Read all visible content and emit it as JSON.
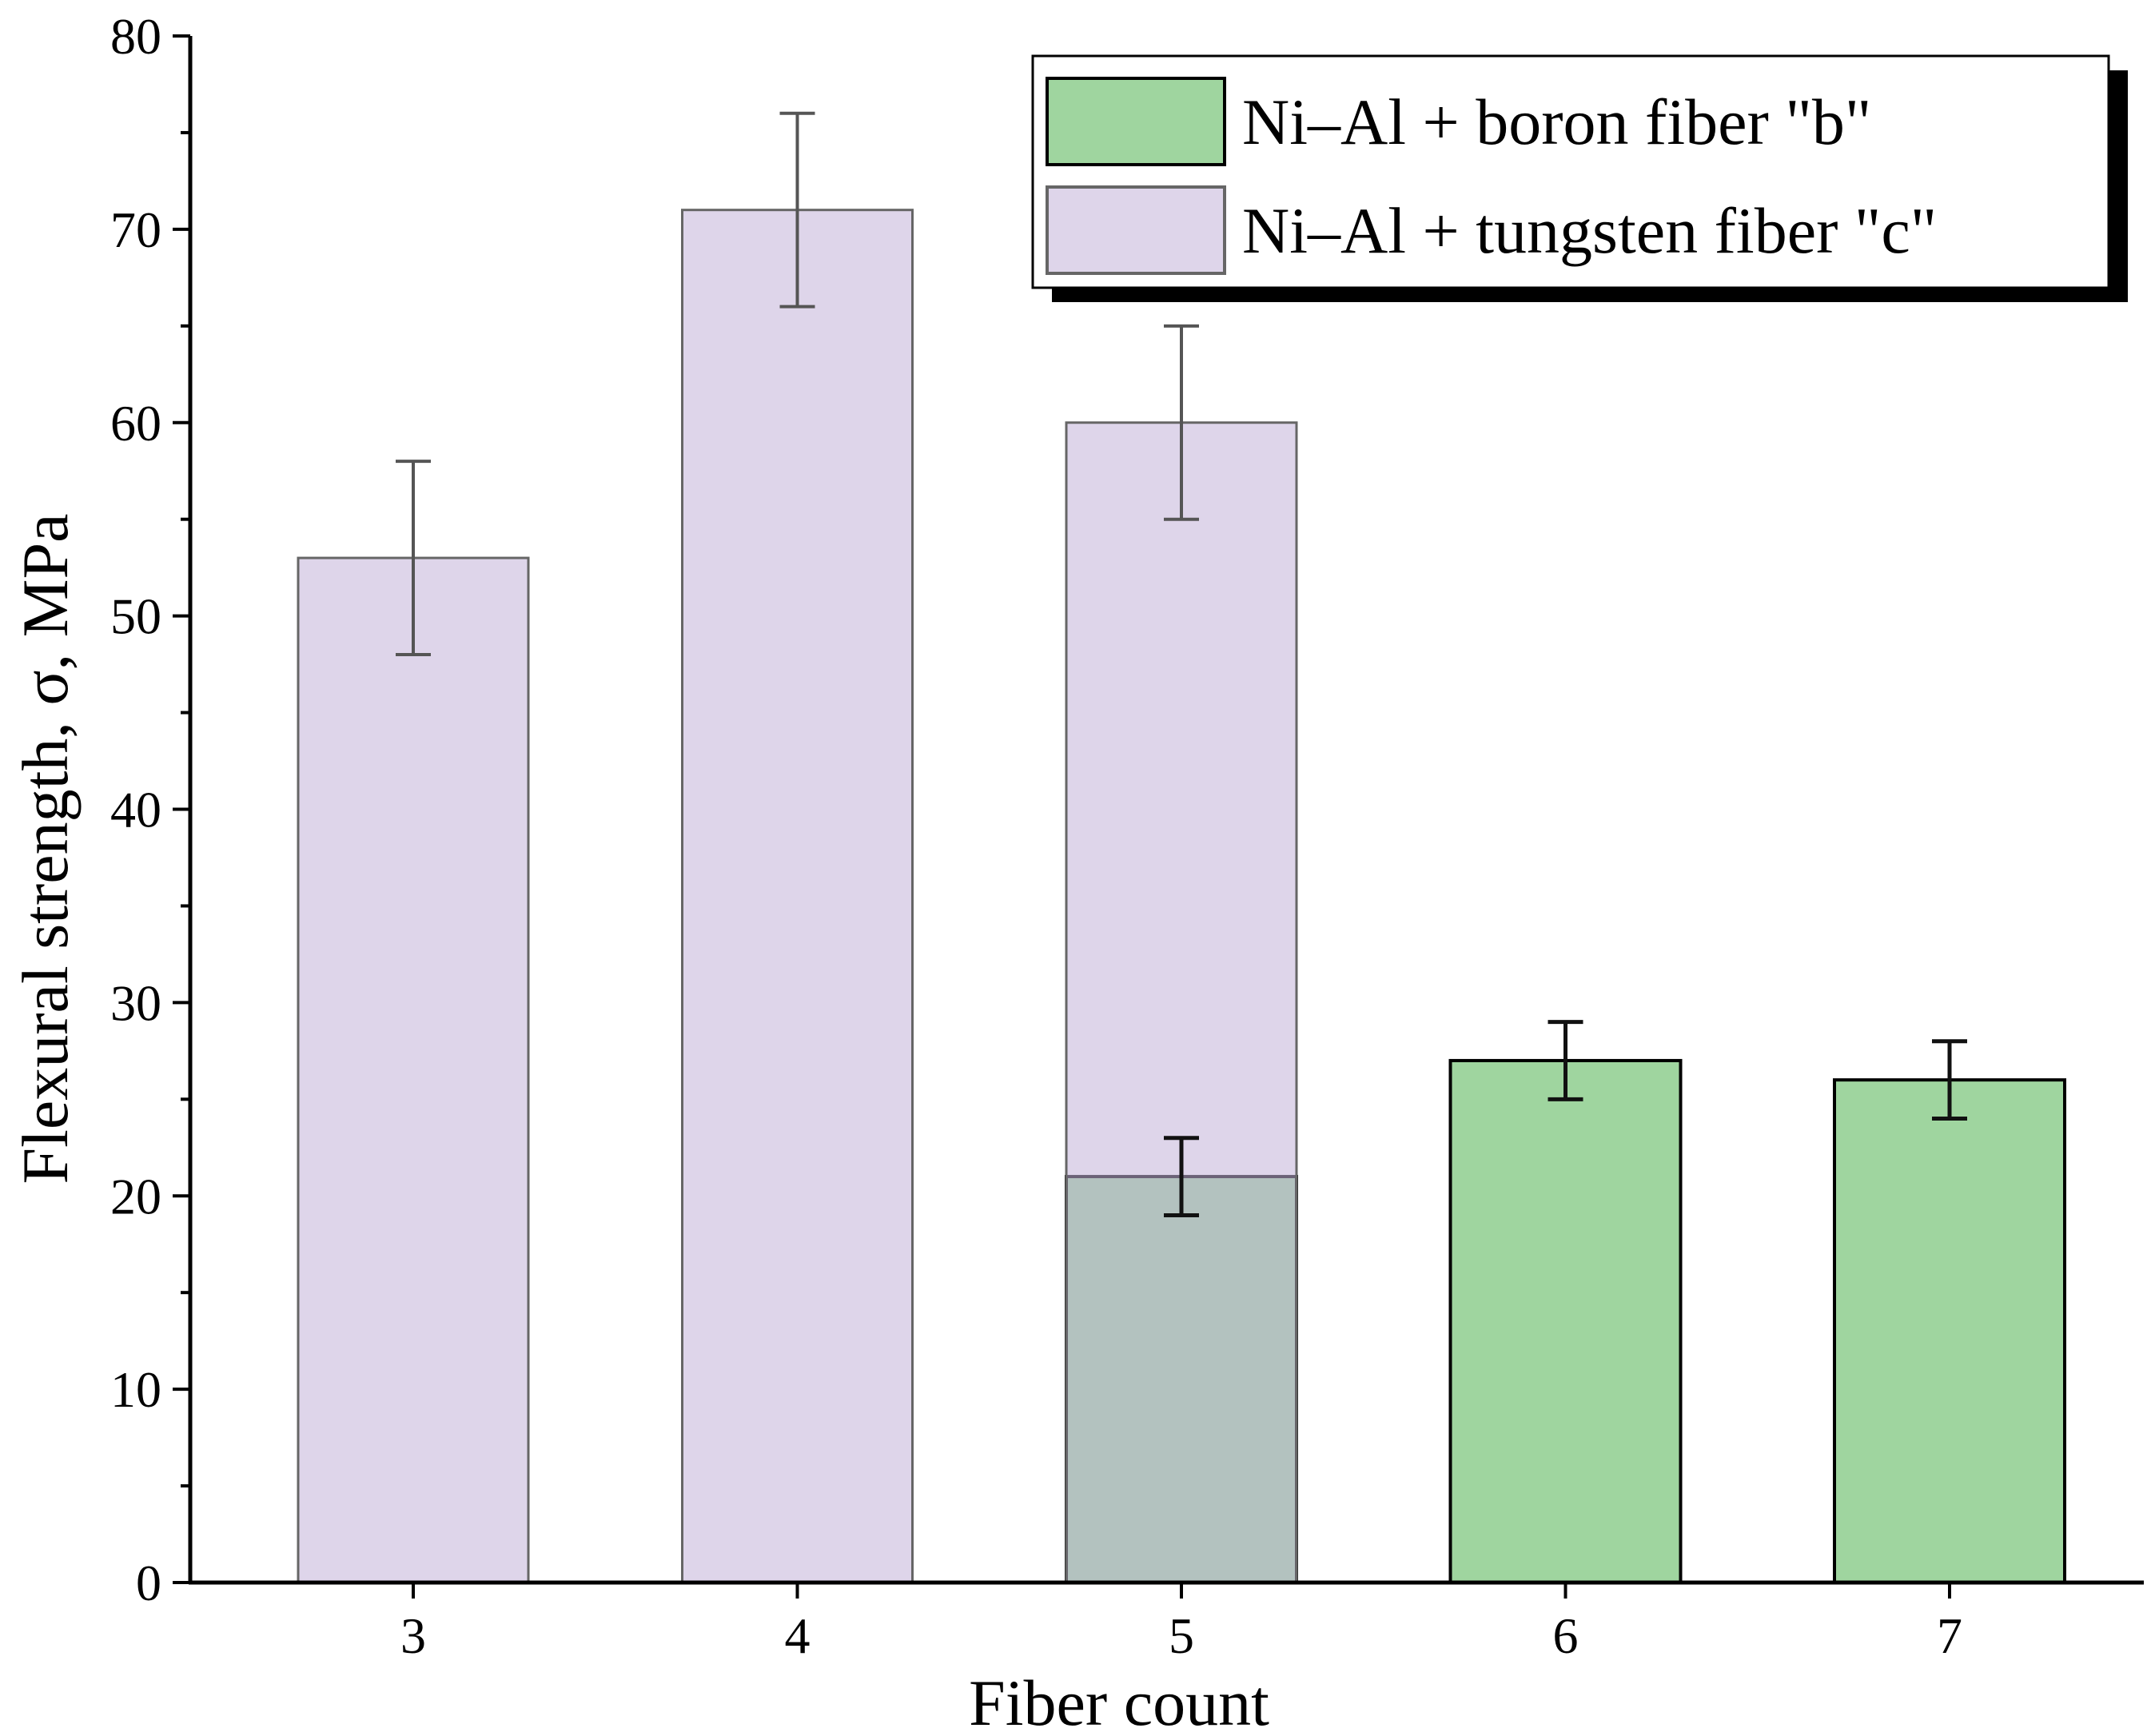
{
  "chart_data": {
    "type": "bar",
    "title": "",
    "xlabel": "Fiber count",
    "ylabel": "Flexural strength, σ, MPa",
    "categories": [
      "3",
      "4",
      "5",
      "6",
      "7"
    ],
    "ylim": [
      0,
      80
    ],
    "yticks": [
      0,
      10,
      20,
      30,
      40,
      50,
      60,
      70,
      80
    ],
    "grid": false,
    "legend_position": "top-right",
    "series": [
      {
        "name": "Ni–Al + boron fiber \"b\"",
        "color": "#9fd59f",
        "edge": "#000000",
        "values": [
          null,
          null,
          21,
          27,
          26
        ],
        "errors": [
          null,
          null,
          2,
          2,
          2
        ]
      },
      {
        "name": "Ni–Al + tungsten fiber \"c\"",
        "color": "#c3b3d9",
        "opacity": 0.55,
        "edge": "#666666",
        "values": [
          53,
          71,
          60,
          null,
          null
        ],
        "errors": [
          5,
          5,
          5,
          null,
          null
        ]
      }
    ]
  }
}
